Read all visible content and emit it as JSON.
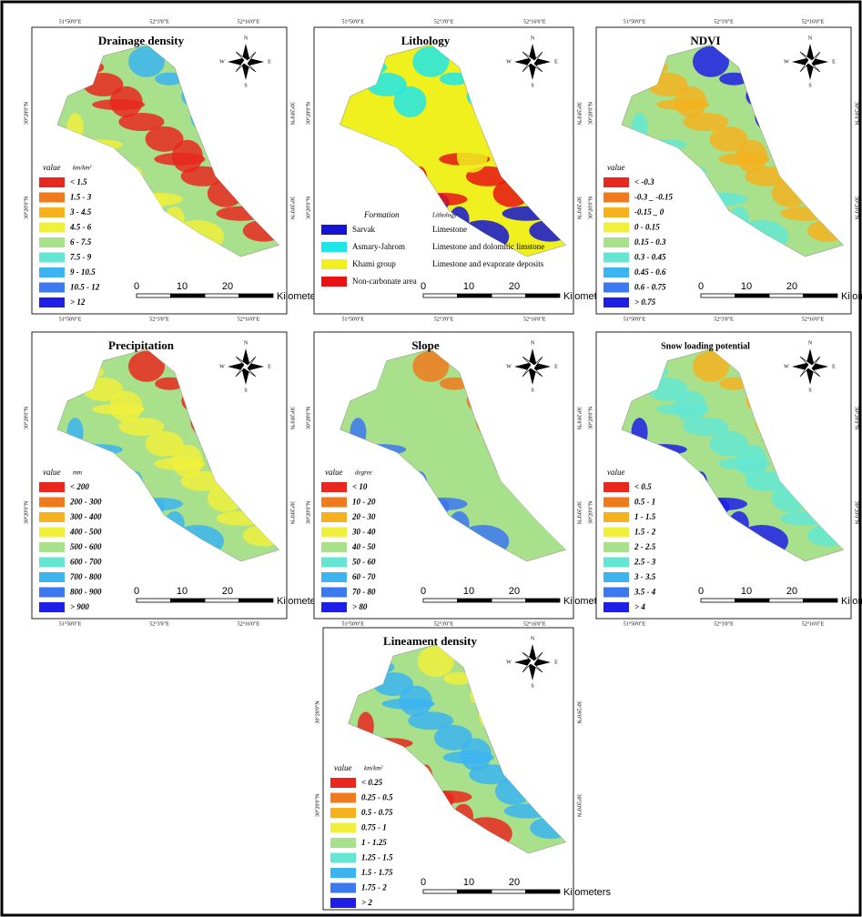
{
  "panels": [
    {
      "title": "Drainage density",
      "legend_title": "value",
      "unit": "km/km²",
      "items": [
        {
          "label": "< 1.5",
          "color": "#e8281e"
        },
        {
          "label": "1.5 - 3",
          "color": "#f07a1e"
        },
        {
          "label": "3 - 4.5",
          "color": "#f5b21e"
        },
        {
          "label": "4.5 - 6",
          "color": "#f0f03c"
        },
        {
          "label": "6 - 7.5",
          "color": "#a8e08c"
        },
        {
          "label": "7.5 - 9",
          "color": "#64e6d2"
        },
        {
          "label": "9 - 10.5",
          "color": "#3cb4f0"
        },
        {
          "label": "10.5 - 12",
          "color": "#3c78f0"
        },
        {
          "label": "> 12",
          "color": "#1e1ee6"
        }
      ],
      "scale": [
        "0",
        "10",
        "20",
        "Kilometers"
      ],
      "compass": [
        "N",
        "E",
        "S",
        "W"
      ],
      "top_coords": [
        "51°50'0\"E",
        "52°3'0\"E",
        "52°16'0\"E"
      ],
      "bottom_coords": [
        "51°50'0\"E",
        "52°3'0\"E",
        "52°16'0\"E"
      ],
      "left_coords": [
        "30°28'0\"N",
        "30°20'0\"N"
      ],
      "right_coords": [
        "30°28'0\"N",
        "30°20'0\"N"
      ]
    },
    {
      "title": "Lithology",
      "legend_title": "Formation",
      "unit": "Lithology",
      "items": [
        {
          "label": "Sarvak",
          "lithology": "Limestone",
          "color": "#1414d2"
        },
        {
          "label": "Asmary-Jahrom",
          "lithology": "Limestone and dolomitic limstone",
          "color": "#1ee6e6"
        },
        {
          "label": "Khami group",
          "lithology": "Limestone and evaporate deposits",
          "color": "#f0f01e"
        },
        {
          "label": "Non-carbonate area",
          "color": "#e61414"
        }
      ],
      "scale": [
        "0",
        "10",
        "20",
        "Kilometers"
      ],
      "compass": [
        "N",
        "E",
        "S",
        "W"
      ],
      "top_coords": [
        "51°50'0\"E",
        "52°3'0\"E",
        "52°16'0\"E"
      ],
      "bottom_coords": [
        "51°50'0\"E",
        "52°3'0\"E",
        "52°16'0\"E"
      ],
      "left_coords": [
        "30°28'0\"N",
        "30°20'0\"N"
      ],
      "right_coords": [
        "30°28'0\"N",
        "30°20'0\"N"
      ]
    },
    {
      "title": "NDVI",
      "legend_title": "value",
      "items": [
        {
          "label": "< -0.3",
          "color": "#e8281e"
        },
        {
          "label": "-0.3 _ -0.15",
          "color": "#f07a1e"
        },
        {
          "label": "-0.15 _ 0",
          "color": "#f5b21e"
        },
        {
          "label": "0 - 0.15",
          "color": "#f0f03c"
        },
        {
          "label": "0.15 - 0.3",
          "color": "#a8e08c"
        },
        {
          "label": "0.3 - 0.45",
          "color": "#64e6d2"
        },
        {
          "label": "0.45 - 0.6",
          "color": "#3cb4f0"
        },
        {
          "label": "0.6 - 0.75",
          "color": "#3c78f0"
        },
        {
          "label": "> 0.75",
          "color": "#1e1ee6"
        }
      ],
      "scale": [
        "0",
        "10",
        "20",
        "Kilometers"
      ],
      "compass": [
        "N",
        "E",
        "S",
        "W"
      ],
      "top_coords": [
        "51°50'0\"E",
        "52°3'0\"E",
        "52°16'0\"E"
      ],
      "bottom_coords": [
        "51°50'0\"E",
        "52°3'0\"E",
        "52°16'0\"E"
      ],
      "left_coords": [
        "30°28'0\"N",
        "30°20'0\"N"
      ],
      "right_coords": [
        "30°28'0\"N",
        "30°20'0\"N"
      ]
    },
    {
      "title": "Precipitation",
      "legend_title": "value",
      "unit": "mm",
      "items": [
        {
          "label": "< 200",
          "color": "#e8281e"
        },
        {
          "label": "200 - 300",
          "color": "#f07a1e"
        },
        {
          "label": "300 - 400",
          "color": "#f5b21e"
        },
        {
          "label": "400 - 500",
          "color": "#f0f03c"
        },
        {
          "label": "500 - 600",
          "color": "#a8e08c"
        },
        {
          "label": "600 - 700",
          "color": "#64e6d2"
        },
        {
          "label": "700 - 800",
          "color": "#3cb4f0"
        },
        {
          "label": "800 - 900",
          "color": "#3c78f0"
        },
        {
          "label": "> 900",
          "color": "#1e1ee6"
        }
      ],
      "scale": [
        "0",
        "10",
        "20",
        "Kilometers"
      ],
      "compass": [
        "N",
        "E",
        "S",
        "W"
      ],
      "bottom_coords": [
        "51°50'0\"E",
        "52°3'0\"E",
        "52°16'0\"E"
      ],
      "left_coords": [
        "30°28'0\"N",
        "30°20'0\"N"
      ],
      "right_coords": [
        "30°28'0\"N",
        "30°20'0\"N"
      ]
    },
    {
      "title": "Slope",
      "legend_title": "value",
      "unit": "degree",
      "items": [
        {
          "label": "< 10",
          "color": "#e8281e"
        },
        {
          "label": "10 - 20",
          "color": "#f07a1e"
        },
        {
          "label": "20 - 30",
          "color": "#f5b21e"
        },
        {
          "label": "30 - 40",
          "color": "#f0f03c"
        },
        {
          "label": "40 - 50",
          "color": "#a8e08c"
        },
        {
          "label": "50 - 60",
          "color": "#64e6d2"
        },
        {
          "label": "60 - 70",
          "color": "#3cb4f0"
        },
        {
          "label": "70 - 80",
          "color": "#3c78f0"
        },
        {
          "label": "> 80",
          "color": "#1e1ee6"
        }
      ],
      "scale": [
        "0",
        "10",
        "20",
        "Kilometers"
      ],
      "compass": [
        "N",
        "E",
        "S",
        "W"
      ],
      "bottom_coords": [
        "51°50'0\"E",
        "52°3'0\"E",
        "52°16'0\"E"
      ],
      "left_coords": [
        "30°28'0\"N",
        "30°20'0\"N"
      ],
      "right_coords": [
        "30°28'0\"N",
        "30°20'0\"N"
      ]
    },
    {
      "title": "Snow loading potential",
      "legend_title": "value",
      "items": [
        {
          "label": "< 0.5",
          "color": "#e8281e"
        },
        {
          "label": "0.5 - 1",
          "color": "#f07a1e"
        },
        {
          "label": "1 - 1.5",
          "color": "#f5b21e"
        },
        {
          "label": "1.5 - 2",
          "color": "#f0f03c"
        },
        {
          "label": "2 - 2.5",
          "color": "#a8e08c"
        },
        {
          "label": "2.5 - 3",
          "color": "#64e6d2"
        },
        {
          "label": "3 - 3.5",
          "color": "#3cb4f0"
        },
        {
          "label": "3.5 - 4",
          "color": "#3c78f0"
        },
        {
          "label": "> 4",
          "color": "#1e1ee6"
        }
      ],
      "scale": [
        "0",
        "10",
        "20",
        "Kilometers"
      ],
      "compass": [
        "N",
        "E",
        "S",
        "W"
      ],
      "bottom_coords": [
        "51°50'0\"E",
        "52°3'0\"E",
        "52°16'0\"E"
      ],
      "left_coords": [
        "30°28'0\"N",
        "30°20'0\"N"
      ],
      "right_coords": [
        "30°28'0\"N",
        "30°20'0\"N"
      ]
    },
    {
      "title": "Lineament density",
      "legend_title": "value",
      "unit": "km/km²",
      "items": [
        {
          "label": "< 0.25",
          "color": "#e8281e"
        },
        {
          "label": "0.25 - 0.5",
          "color": "#f07a1e"
        },
        {
          "label": "0.5 - 0.75",
          "color": "#f5b21e"
        },
        {
          "label": "0.75 - 1",
          "color": "#f0f03c"
        },
        {
          "label": "1 - 1.25",
          "color": "#a8e08c"
        },
        {
          "label": "1.25 - 1.5",
          "color": "#64e6d2"
        },
        {
          "label": "1.5 - 1.75",
          "color": "#3cb4f0"
        },
        {
          "label": "1.75 - 2",
          "color": "#3c78f0"
        },
        {
          "label": "> 2",
          "color": "#1e1ee6"
        }
      ],
      "scale": [
        "0",
        "10",
        "20",
        "Kilometers"
      ],
      "compass": [
        "N",
        "E",
        "S",
        "W"
      ],
      "left_coords": [
        "30°28'0\"N",
        "30°20'0\"N"
      ],
      "right_coords": [
        "30°28'0\"N",
        "30°20'0\"N"
      ]
    }
  ]
}
